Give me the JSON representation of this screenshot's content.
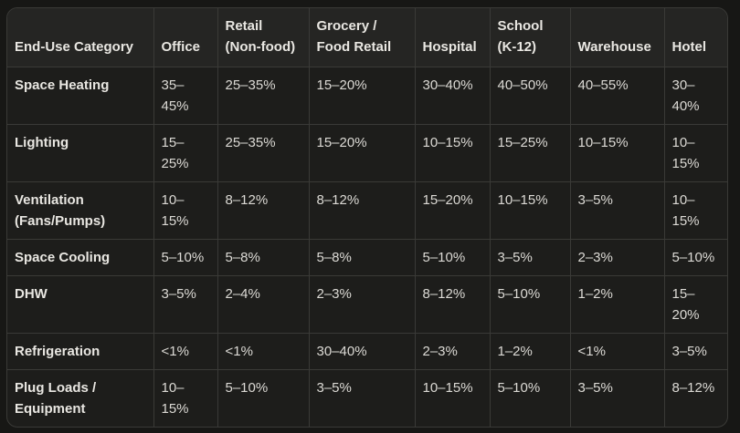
{
  "theme": {
    "page_bg": "#171715",
    "table_bg": "#1d1d1b",
    "header_bg": "#252523",
    "grid_line": "#3a3a37",
    "heading_text": "#e9e7e2",
    "value_text": "#dcdad5"
  },
  "table": {
    "columns": [
      "End-Use Category",
      "Office",
      "Retail (Non-food)",
      "Grocery / Food Retail",
      "Hospital",
      "School (K-12)",
      "Warehouse",
      "Hotel"
    ],
    "rows": [
      {
        "category": "Space Heating",
        "values": [
          "35–45%",
          "25–35%",
          "15–20%",
          "30–40%",
          "40–50%",
          "40–55%",
          "30–40%"
        ]
      },
      {
        "category": "Lighting",
        "values": [
          "15–25%",
          "25–35%",
          "15–20%",
          "10–15%",
          "15–25%",
          "10–15%",
          "10–15%"
        ]
      },
      {
        "category": "Ventilation (Fans/Pumps)",
        "values": [
          "10–15%",
          "8–12%",
          "8–12%",
          "15–20%",
          "10–15%",
          "3–5%",
          "10–15%"
        ]
      },
      {
        "category": "Space Cooling",
        "values": [
          "5–10%",
          "5–8%",
          "5–8%",
          "5–10%",
          "3–5%",
          "2–3%",
          "5–10%"
        ]
      },
      {
        "category": "DHW",
        "values": [
          "3–5%",
          "2–4%",
          "2–3%",
          "8–12%",
          "5–10%",
          "1–2%",
          "15–20%"
        ]
      },
      {
        "category": "Refrigeration",
        "values": [
          "<1%",
          "<1%",
          "30–40%",
          "2–3%",
          "1–2%",
          "<1%",
          "3–5%"
        ]
      },
      {
        "category": "Plug Loads / Equipment",
        "values": [
          "10–15%",
          "5–10%",
          "3–5%",
          "10–15%",
          "5–10%",
          "3–5%",
          "8–12%"
        ]
      }
    ]
  }
}
